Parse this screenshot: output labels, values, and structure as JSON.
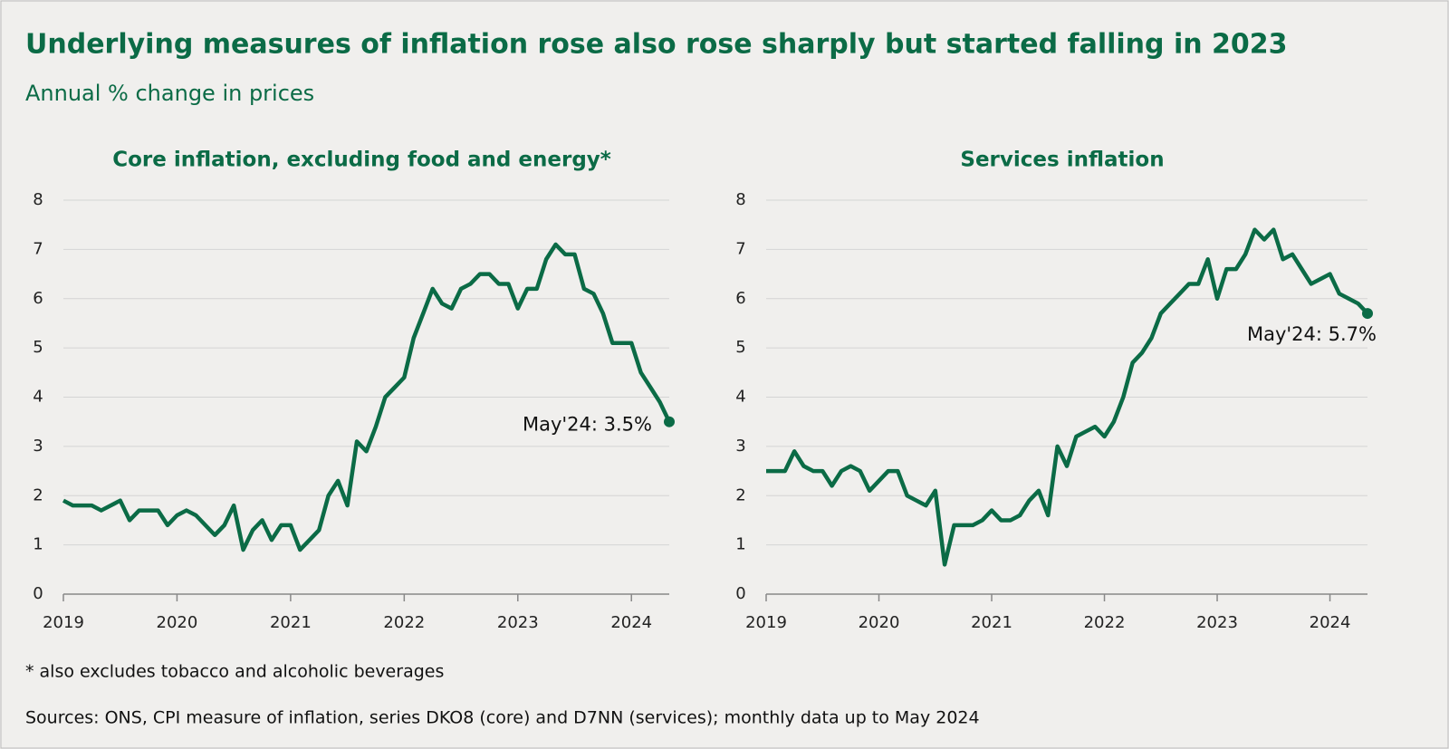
{
  "title": "Underlying measures of inflation rose also rose sharply but started falling in 2023",
  "subtitle": "Annual % change in prices",
  "footnote": "* also excludes tobacco and alcoholic beverages",
  "source": "Sources: ONS, CPI measure of inflation, series DKO8 (core) and D7NN (services); monthly data up to May 2024",
  "chart_data": [
    {
      "type": "line",
      "title": "Core inflation, excluding food and energy*",
      "x": [
        2019,
        2019.083,
        2019.167,
        2019.25,
        2019.333,
        2019.417,
        2019.5,
        2019.583,
        2019.667,
        2019.75,
        2019.833,
        2019.917,
        2020,
        2020.083,
        2020.167,
        2020.25,
        2020.333,
        2020.417,
        2020.5,
        2020.583,
        2020.667,
        2020.75,
        2020.833,
        2020.917,
        2021,
        2021.083,
        2021.167,
        2021.25,
        2021.333,
        2021.417,
        2021.5,
        2021.583,
        2021.667,
        2021.75,
        2021.833,
        2021.917,
        2022,
        2022.083,
        2022.167,
        2022.25,
        2022.333,
        2022.417,
        2022.5,
        2022.583,
        2022.667,
        2022.75,
        2022.833,
        2022.917,
        2023,
        2023.083,
        2023.167,
        2023.25,
        2023.333,
        2023.417,
        2023.5,
        2023.583,
        2023.667,
        2023.75,
        2023.833,
        2023.917,
        2024,
        2024.083,
        2024.167,
        2024.25,
        2024.333
      ],
      "series": [
        {
          "color": "#0b6b46",
          "values": [
            1.9,
            1.8,
            1.8,
            1.8,
            1.7,
            1.8,
            1.9,
            1.5,
            1.7,
            1.7,
            1.7,
            1.4,
            1.6,
            1.7,
            1.6,
            1.4,
            1.2,
            1.4,
            1.8,
            0.9,
            1.3,
            1.5,
            1.1,
            1.4,
            1.4,
            0.9,
            1.1,
            1.3,
            2.0,
            2.3,
            1.8,
            3.1,
            2.9,
            3.4,
            4.0,
            4.2,
            4.4,
            5.2,
            5.7,
            6.2,
            5.9,
            5.8,
            6.2,
            6.3,
            6.5,
            6.5,
            6.3,
            6.3,
            5.8,
            6.2,
            6.2,
            6.8,
            7.1,
            6.9,
            6.9,
            6.2,
            6.1,
            5.7,
            5.1,
            5.1,
            5.1,
            4.5,
            4.2,
            3.9,
            3.5
          ]
        }
      ],
      "annotation": "May'24: 3.5%",
      "xlim": [
        2019,
        2024.333
      ],
      "xticks": [
        2019,
        2020,
        2021,
        2022,
        2023,
        2024
      ],
      "ylim": [
        0,
        8
      ],
      "yticks": [
        0,
        1,
        2,
        3,
        4,
        5,
        6,
        7,
        8
      ],
      "grid": true
    },
    {
      "type": "line",
      "title": "Services inflation",
      "x": [
        2019,
        2019.083,
        2019.167,
        2019.25,
        2019.333,
        2019.417,
        2019.5,
        2019.583,
        2019.667,
        2019.75,
        2019.833,
        2019.917,
        2020,
        2020.083,
        2020.167,
        2020.25,
        2020.333,
        2020.417,
        2020.5,
        2020.583,
        2020.667,
        2020.75,
        2020.833,
        2020.917,
        2021,
        2021.083,
        2021.167,
        2021.25,
        2021.333,
        2021.417,
        2021.5,
        2021.583,
        2021.667,
        2021.75,
        2021.833,
        2021.917,
        2022,
        2022.083,
        2022.167,
        2022.25,
        2022.333,
        2022.417,
        2022.5,
        2022.583,
        2022.667,
        2022.75,
        2022.833,
        2022.917,
        2023,
        2023.083,
        2023.167,
        2023.25,
        2023.333,
        2023.417,
        2023.5,
        2023.583,
        2023.667,
        2023.75,
        2023.833,
        2023.917,
        2024,
        2024.083,
        2024.167,
        2024.25,
        2024.333
      ],
      "series": [
        {
          "color": "#0b6b46",
          "values": [
            2.5,
            2.5,
            2.5,
            2.9,
            2.6,
            2.5,
            2.5,
            2.2,
            2.5,
            2.6,
            2.5,
            2.1,
            2.3,
            2.5,
            2.5,
            2.0,
            1.9,
            1.8,
            2.1,
            0.6,
            1.4,
            1.4,
            1.4,
            1.5,
            1.7,
            1.5,
            1.5,
            1.6,
            1.9,
            2.1,
            1.6,
            3.0,
            2.6,
            3.2,
            3.3,
            3.4,
            3.2,
            3.5,
            4.0,
            4.7,
            4.9,
            5.2,
            5.7,
            5.9,
            6.1,
            6.3,
            6.3,
            6.8,
            6.0,
            6.6,
            6.6,
            6.9,
            7.4,
            7.2,
            7.4,
            6.8,
            6.9,
            6.6,
            6.3,
            6.4,
            6.5,
            6.1,
            6.0,
            5.9,
            5.7
          ]
        }
      ],
      "annotation": "May'24: 5.7%",
      "xlim": [
        2019,
        2024.333
      ],
      "xticks": [
        2019,
        2020,
        2021,
        2022,
        2023,
        2024
      ],
      "ylim": [
        0,
        8
      ],
      "yticks": [
        0,
        1,
        2,
        3,
        4,
        5,
        6,
        7,
        8
      ],
      "grid": true
    }
  ]
}
